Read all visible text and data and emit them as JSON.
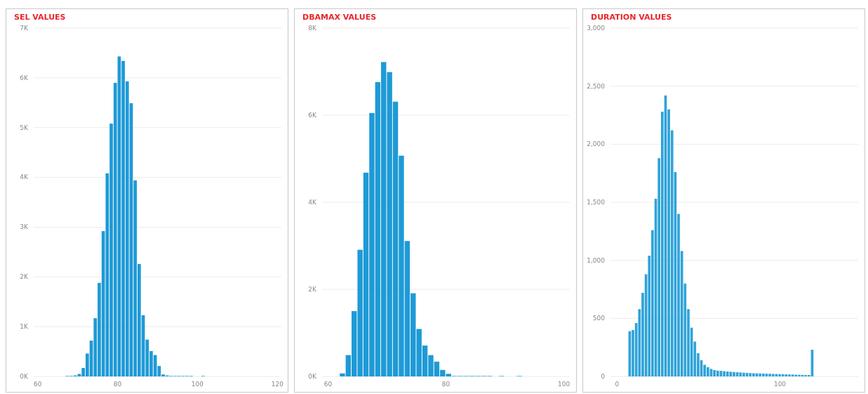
{
  "chart_data": [
    {
      "type": "histogram",
      "title": "SEL VALUES",
      "color": "#1e9ad6",
      "grid": "y",
      "bins": [
        67,
        68,
        69,
        70,
        71,
        72,
        73,
        74,
        75,
        76,
        77,
        78,
        79,
        80,
        81,
        82,
        83,
        84,
        85,
        86,
        87,
        88,
        89,
        90,
        91,
        92,
        93,
        94,
        95,
        96,
        97,
        98,
        99,
        100,
        101,
        102
      ],
      "values": [
        10,
        10,
        20,
        50,
        170,
        460,
        720,
        1170,
        1880,
        2920,
        4080,
        5080,
        5900,
        6430,
        6340,
        5930,
        5490,
        3940,
        2260,
        1230,
        740,
        510,
        430,
        210,
        40,
        20,
        10,
        10,
        10,
        10,
        10,
        10,
        0,
        0,
        10
      ],
      "xlim": [
        59,
        121
      ],
      "xticks": [
        60,
        80,
        100,
        120
      ],
      "ylim": [
        0,
        7000
      ],
      "yticks": [
        {
          "value": 0,
          "label": "0K"
        },
        {
          "value": 1000,
          "label": "1K"
        },
        {
          "value": 2000,
          "label": "2K"
        },
        {
          "value": 3000,
          "label": "3K"
        },
        {
          "value": 4000,
          "label": "4K"
        },
        {
          "value": 5000,
          "label": "5K"
        },
        {
          "value": 6000,
          "label": "6K"
        },
        {
          "value": 7000,
          "label": "7K"
        }
      ]
    },
    {
      "type": "histogram",
      "title": "DBAMAX VALUES",
      "color": "#1e9ad6",
      "grid": "y",
      "bins": [
        62,
        63,
        64,
        65,
        66,
        67,
        68,
        69,
        70,
        71,
        72,
        73,
        74,
        75,
        76,
        77,
        78,
        79,
        80,
        81,
        82,
        83,
        84,
        85,
        86,
        87,
        88,
        89,
        90,
        91,
        92,
        93
      ],
      "values": [
        70,
        490,
        1500,
        2910,
        4680,
        6050,
        6760,
        7220,
        6990,
        6310,
        5070,
        3110,
        1910,
        1090,
        710,
        490,
        340,
        150,
        60,
        10,
        10,
        10,
        10,
        10,
        10,
        10,
        0,
        10,
        0,
        0,
        10
      ],
      "xlim": [
        59,
        101
      ],
      "xticks": [
        60,
        80,
        100
      ],
      "ylim": [
        0,
        8000
      ],
      "yticks": [
        {
          "value": 0,
          "label": "0K"
        },
        {
          "value": 2000,
          "label": "2K"
        },
        {
          "value": 4000,
          "label": "4K"
        },
        {
          "value": 6000,
          "label": "6K"
        },
        {
          "value": 8000,
          "label": "8K"
        }
      ]
    },
    {
      "type": "histogram",
      "title": "DURATION VALUES",
      "color": "#2ea3d9",
      "grid": "y",
      "bins": [
        7,
        9,
        11,
        13,
        15,
        17,
        19,
        21,
        23,
        25,
        27,
        29,
        31,
        33,
        35,
        37,
        39,
        41,
        43,
        45,
        47,
        49,
        51,
        53,
        55,
        57,
        59,
        61,
        63,
        65,
        67,
        69,
        71,
        73,
        75,
        77,
        79,
        81,
        83,
        85,
        87,
        89,
        91,
        93,
        95,
        97,
        99,
        101,
        103,
        105,
        107,
        109,
        111,
        113,
        115,
        117,
        119,
        121
      ],
      "values": [
        390,
        400,
        460,
        580,
        720,
        880,
        1040,
        1260,
        1530,
        1880,
        2280,
        2420,
        2300,
        2120,
        1760,
        1400,
        1080,
        800,
        580,
        420,
        300,
        200,
        140,
        100,
        80,
        65,
        55,
        50,
        48,
        45,
        42,
        40,
        38,
        36,
        34,
        32,
        30,
        29,
        28,
        27,
        26,
        25,
        24,
        23,
        22,
        21,
        20,
        19,
        18,
        17,
        16,
        15,
        14,
        13,
        12,
        12,
        230
      ],
      "xlim": [
        -4,
        148
      ],
      "xticks": [
        0,
        100
      ],
      "ylim": [
        0,
        3000
      ],
      "yticks": [
        0,
        500,
        {
          "value": 1000,
          "label": "1,000"
        },
        {
          "value": 1500,
          "label": "1,500"
        },
        {
          "value": 2000,
          "label": "2,000"
        },
        {
          "value": 2500,
          "label": "2,500"
        },
        {
          "value": 3000,
          "label": "3,000"
        }
      ]
    }
  ]
}
